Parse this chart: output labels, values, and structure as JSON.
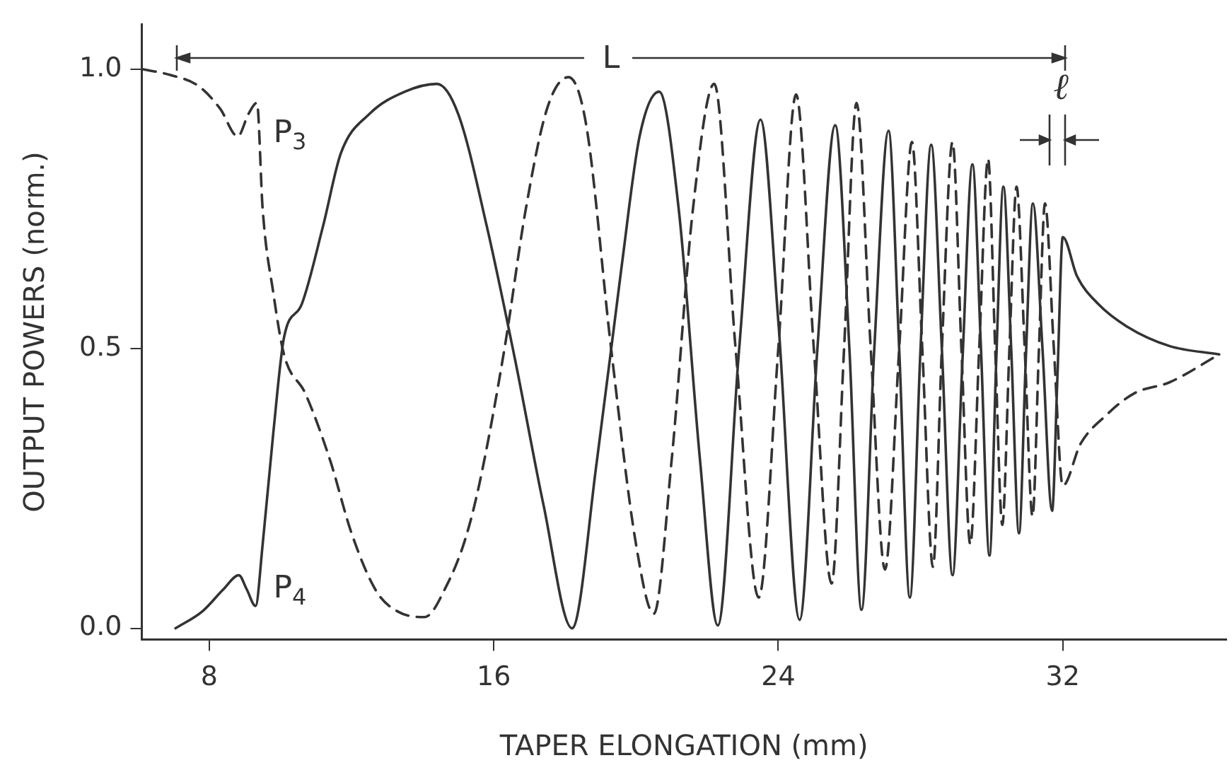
{
  "chart_data": {
    "type": "line",
    "xlabel": "TAPER ELONGATION (mm)",
    "ylabel": "OUTPUT POWERS (norm.)",
    "xlim": [
      6.1,
      36.6
    ],
    "ylim": [
      -0.02,
      1.08
    ],
    "xticks": [
      8,
      16,
      24,
      32
    ],
    "yticks": [
      {
        "value": 0,
        "label": "0.0"
      },
      {
        "value": 0.5,
        "label": "0.5"
      },
      {
        "value": 1,
        "label": "1.0"
      }
    ],
    "grid": false,
    "legend": false,
    "marker": "none",
    "series": [
      {
        "color": "#333333",
        "line_style": "solid",
        "x": [
          7.05,
          7.8,
          8.4,
          8.83,
          9.05,
          9.3,
          9.5,
          9.8,
          10.1,
          10.6,
          11.2,
          11.7,
          12.5,
          13.5,
          14.4,
          15.0,
          15.8,
          16.6,
          17.4,
          18.2,
          18.9,
          19.6,
          20.1,
          20.65,
          21.2,
          21.8,
          22.3,
          22.9,
          23.5,
          24.0,
          24.6,
          25.1,
          25.6,
          26.0,
          26.34,
          26.7,
          27.1,
          27.4,
          27.7,
          28.0,
          28.3,
          28.6,
          28.9,
          29.18,
          29.46,
          29.7,
          29.94,
          30.13,
          30.33,
          30.55,
          30.77,
          30.96,
          31.16,
          31.43,
          31.7,
          31.85,
          32.0,
          32.4,
          33.0,
          33.8,
          35.0,
          36.4
        ],
        "values": [
          0.0,
          0.03,
          0.07,
          0.095,
          0.07,
          0.04,
          0.15,
          0.35,
          0.52,
          0.58,
          0.72,
          0.85,
          0.92,
          0.96,
          0.974,
          0.92,
          0.72,
          0.48,
          0.22,
          0.0,
          0.3,
          0.65,
          0.88,
          0.96,
          0.75,
          0.3,
          0.005,
          0.5,
          0.91,
          0.55,
          0.015,
          0.5,
          0.9,
          0.5,
          0.033,
          0.5,
          0.89,
          0.5,
          0.055,
          0.5,
          0.865,
          0.5,
          0.095,
          0.48,
          0.83,
          0.5,
          0.13,
          0.48,
          0.79,
          0.5,
          0.17,
          0.48,
          0.76,
          0.5,
          0.21,
          0.45,
          0.7,
          0.63,
          0.58,
          0.54,
          0.505,
          0.49
        ]
      },
      {
        "color": "#333333",
        "line_style": "dashed",
        "x": [
          6.14,
          6.9,
          7.7,
          8.3,
          8.8,
          9.1,
          9.34,
          9.5,
          9.8,
          10.1,
          10.7,
          11.4,
          12.0,
          12.7,
          13.3,
          14.05,
          14.7,
          15.2,
          15.6,
          16.3,
          16.9,
          17.5,
          18.1,
          18.6,
          19.3,
          20.0,
          20.5,
          21.0,
          21.6,
          22.2,
          22.8,
          23.45,
          24.0,
          24.5,
          25.0,
          25.5,
          25.85,
          26.2,
          26.6,
          27.0,
          27.4,
          27.76,
          28.05,
          28.35,
          28.6,
          28.9,
          29.15,
          29.4,
          29.65,
          29.9,
          30.1,
          30.3,
          30.5,
          30.7,
          30.93,
          31.15,
          31.33,
          31.5,
          31.75,
          32.0,
          32.5,
          33.2,
          34.0,
          35.0,
          36.4
        ],
        "values": [
          1.0,
          0.99,
          0.97,
          0.93,
          0.88,
          0.92,
          0.94,
          0.75,
          0.6,
          0.49,
          0.42,
          0.3,
          0.17,
          0.066,
          0.03,
          0.02,
          0.08,
          0.16,
          0.26,
          0.5,
          0.75,
          0.93,
          0.986,
          0.9,
          0.5,
          0.15,
          0.026,
          0.3,
          0.75,
          0.974,
          0.5,
          0.055,
          0.5,
          0.955,
          0.5,
          0.08,
          0.5,
          0.94,
          0.5,
          0.105,
          0.5,
          0.87,
          0.5,
          0.11,
          0.5,
          0.87,
          0.5,
          0.15,
          0.5,
          0.84,
          0.5,
          0.185,
          0.5,
          0.79,
          0.5,
          0.2,
          0.5,
          0.76,
          0.5,
          0.255,
          0.33,
          0.38,
          0.42,
          0.44,
          0.49
        ]
      }
    ],
    "annotations": [
      "L",
      "ℓ",
      "P$_{3}$",
      "P$_{4}$"
    ]
  }
}
